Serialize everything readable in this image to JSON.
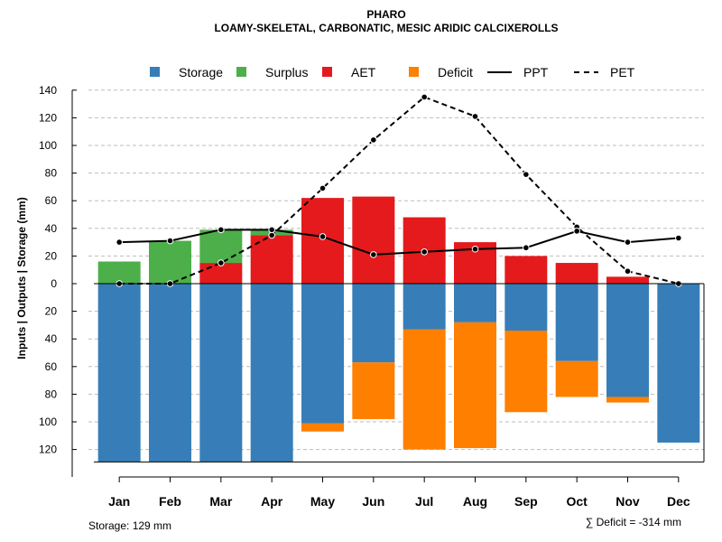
{
  "chart_data": {
    "type": "bar",
    "title": "PHARO",
    "subtitle": "LOAMY-SKELETAL, CARBONATIC, MESIC ARIDIC CALCIXEROLLS",
    "ylabel": "Inputs | Outputs | Storage    (mm)",
    "ylim": [
      -129,
      140
    ],
    "yticks_above": [
      0,
      20,
      40,
      60,
      80,
      100,
      120,
      140
    ],
    "yticks_below": [
      20,
      40,
      60,
      80,
      100,
      120
    ],
    "grid": true,
    "legend_position": "top",
    "categories": [
      "Jan",
      "Feb",
      "Mar",
      "Apr",
      "May",
      "Jun",
      "Jul",
      "Aug",
      "Sep",
      "Oct",
      "Nov",
      "Dec"
    ],
    "series": [
      {
        "name": "Storage",
        "color": "#377eb8",
        "values": [
          129,
          129,
          129,
          129,
          101,
          57,
          33,
          28,
          34,
          56,
          82,
          115
        ]
      },
      {
        "name": "Surplus",
        "color": "#4daf4a",
        "values": [
          16,
          31,
          24,
          4,
          0,
          0,
          0,
          0,
          0,
          0,
          0,
          0
        ]
      },
      {
        "name": "AET",
        "color": "#e41a1c",
        "values": [
          0,
          0,
          15,
          35,
          62,
          63,
          48,
          30,
          20,
          15,
          5,
          0
        ]
      },
      {
        "name": "Deficit",
        "color": "#ff7f00",
        "values": [
          0,
          0,
          0,
          0,
          6,
          41,
          87,
          91,
          59,
          26,
          4,
          0
        ]
      },
      {
        "name": "PPT",
        "color": "#000000",
        "values": [
          30,
          31,
          39,
          39,
          34,
          21,
          23,
          25,
          26,
          38,
          30,
          33
        ]
      },
      {
        "name": "PET",
        "color": "#000000",
        "values": [
          0,
          0,
          15,
          35,
          69,
          104,
          135,
          121,
          79,
          41,
          9,
          0
        ]
      }
    ],
    "storage_label": "Storage: 129 mm",
    "deficit_label": "∑ Deficit = -314 mm"
  }
}
